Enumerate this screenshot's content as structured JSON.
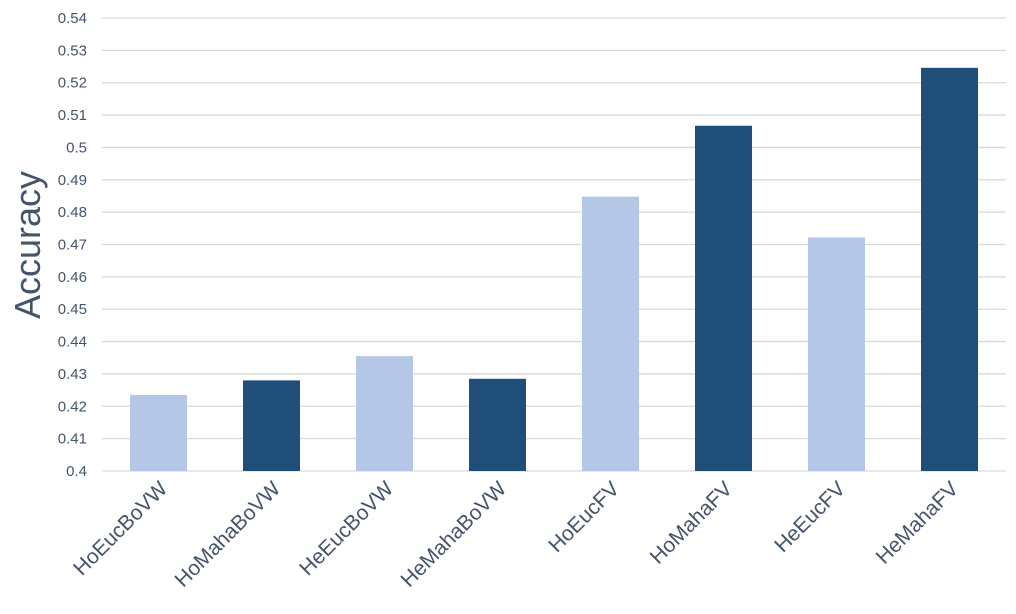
{
  "chart_data": {
    "type": "bar",
    "title": "",
    "xlabel": "",
    "ylabel": "Accuracy",
    "ylim": [
      0.4,
      0.54
    ],
    "yticks": [
      "0.4",
      "0.41",
      "0.42",
      "0.43",
      "0.44",
      "0.45",
      "0.46",
      "0.47",
      "0.48",
      "0.49",
      "0.5",
      "0.51",
      "0.52",
      "0.53",
      "0.54"
    ],
    "grid": true,
    "legend": "none",
    "categories": [
      "HoEucBoVW",
      "HoMahaBoVW",
      "HeEucBoVW",
      "HeMahaBoVW",
      "HoEucFV",
      "HoMahaFV",
      "HeEucFV",
      "HeMahaFV"
    ],
    "values": [
      0.4235,
      0.428,
      0.4355,
      0.4285,
      0.4848,
      0.5067,
      0.4722,
      0.5246
    ],
    "bar_colors": [
      "#b4c7e7",
      "#1f4e79",
      "#b4c7e7",
      "#1f4e79",
      "#b4c7e7",
      "#1f4e79",
      "#b4c7e7",
      "#1f4e79"
    ],
    "colors": {
      "light_bar": "#b4c7e7",
      "dark_bar": "#1f4e79",
      "gridline": "#d9d9d9",
      "text": "#44546a"
    }
  }
}
